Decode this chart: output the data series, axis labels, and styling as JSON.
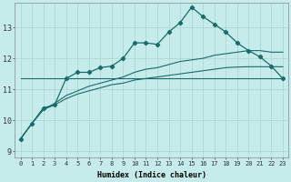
{
  "xlabel": "Humidex (Indice chaleur)",
  "bg_color": "#c5ecea",
  "grid_color": "#aad4d0",
  "line_color": "#1a6b6b",
  "xlim": [
    -0.5,
    23.5
  ],
  "ylim": [
    8.8,
    13.8
  ],
  "yticks": [
    9,
    10,
    11,
    12,
    13
  ],
  "xticks": [
    0,
    1,
    2,
    3,
    4,
    5,
    6,
    7,
    8,
    9,
    10,
    11,
    12,
    13,
    14,
    15,
    16,
    17,
    18,
    19,
    20,
    21,
    22,
    23
  ],
  "y_main": [
    9.4,
    9.9,
    10.4,
    10.5,
    11.35,
    11.55,
    11.55,
    11.7,
    11.75,
    12.0,
    12.5,
    12.5,
    12.45,
    12.85,
    13.15,
    13.65,
    13.35,
    13.1,
    12.85,
    12.5,
    12.25,
    12.05,
    11.75,
    11.35
  ],
  "y_flat": [
    11.35,
    11.35,
    11.35,
    11.35,
    11.35,
    11.35,
    11.35,
    11.35,
    11.35,
    11.35,
    11.35,
    11.35,
    11.35,
    11.35,
    11.35,
    11.35,
    11.35,
    11.35,
    11.35,
    11.35,
    11.35,
    11.35,
    11.35,
    11.35
  ],
  "y_upper": [
    9.4,
    9.9,
    10.35,
    10.55,
    10.8,
    10.95,
    11.1,
    11.2,
    11.3,
    11.4,
    11.55,
    11.65,
    11.7,
    11.8,
    11.9,
    11.95,
    12.0,
    12.1,
    12.15,
    12.2,
    12.25,
    12.25,
    12.2,
    12.2
  ],
  "y_lower": [
    9.4,
    9.9,
    10.35,
    10.5,
    10.7,
    10.85,
    10.95,
    11.05,
    11.15,
    11.2,
    11.3,
    11.35,
    11.4,
    11.45,
    11.5,
    11.55,
    11.6,
    11.65,
    11.7,
    11.72,
    11.73,
    11.73,
    11.73,
    11.73
  ]
}
